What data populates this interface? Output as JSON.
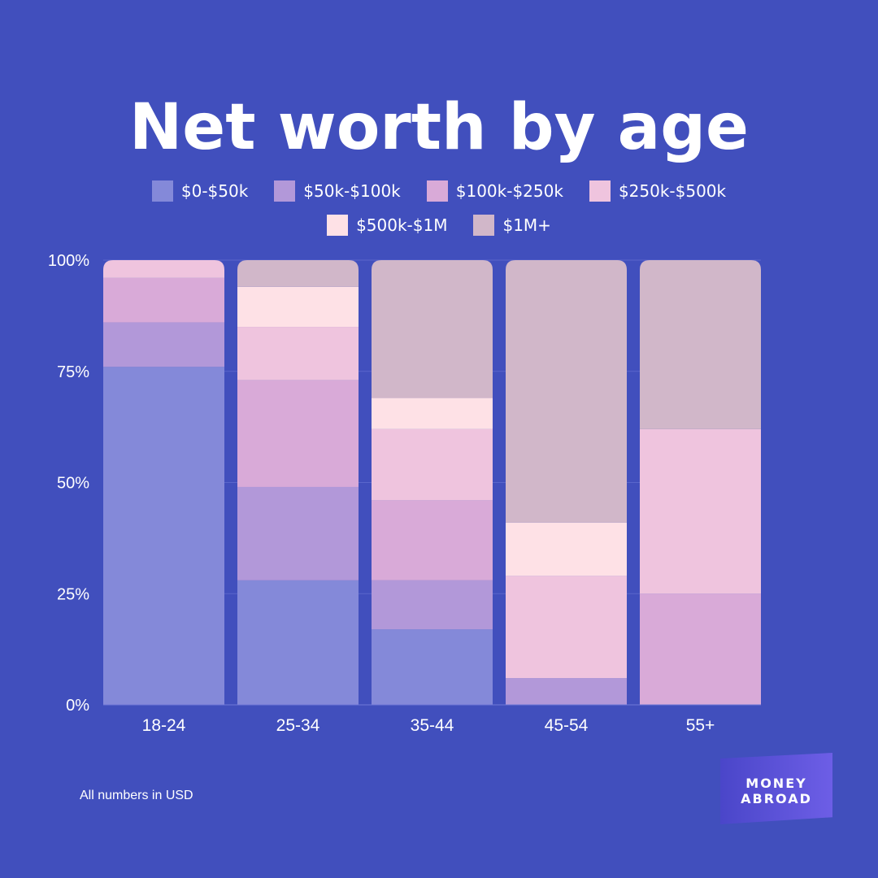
{
  "title": "Net worth by age",
  "footnote": "All numbers in USD",
  "logo": {
    "line1": "MONEY",
    "line2": "ABROAD"
  },
  "legend_rows": [
    [
      {
        "name": "$0-$50k",
        "color": "#8489d9"
      },
      {
        "name": "$50k-$100k",
        "color": "#b298d9"
      },
      {
        "name": "$100k-$250k",
        "color": "#d9aad8"
      },
      {
        "name": "$250k-$500k",
        "color": "#efc4de"
      }
    ],
    [
      {
        "name": "$500k-$1M",
        "color": "#fee1e6"
      },
      {
        "name": "$1M+",
        "color": "#d1b7c9"
      }
    ]
  ],
  "chart_data": {
    "type": "bar",
    "stacked": true,
    "categories": [
      "18-24",
      "25-34",
      "35-44",
      "45-54",
      "55+"
    ],
    "ylim": [
      0,
      100
    ],
    "yticks": [
      "0%",
      "25%",
      "50%",
      "75%",
      "100%"
    ],
    "grid": true,
    "legend_position": "top",
    "series": [
      {
        "name": "$0-$50k",
        "color": "#8489d9",
        "values": [
          76,
          28,
          17,
          0,
          0
        ]
      },
      {
        "name": "$50k-$100k",
        "color": "#b298d9",
        "values": [
          10,
          21,
          11,
          6,
          0
        ]
      },
      {
        "name": "$100k-$250k",
        "color": "#d9aad8",
        "values": [
          10,
          24,
          18,
          0,
          25
        ]
      },
      {
        "name": "$250k-$500k",
        "color": "#efc4de",
        "values": [
          4,
          12,
          16,
          23,
          37
        ]
      },
      {
        "name": "$500k-$1M",
        "color": "#fee1e6",
        "values": [
          0,
          9,
          7,
          12,
          0
        ]
      },
      {
        "name": "$1M+",
        "color": "#d1b7c9",
        "values": [
          0,
          6,
          31,
          59,
          38
        ]
      }
    ]
  }
}
